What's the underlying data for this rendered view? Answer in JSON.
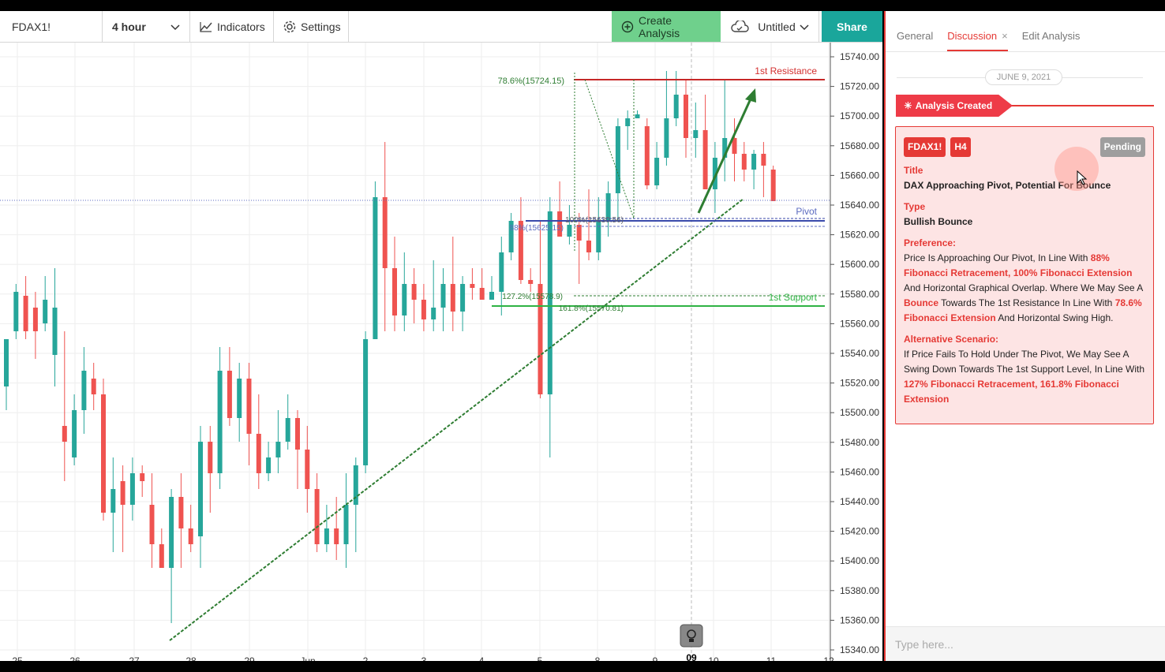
{
  "toolbar": {
    "symbol": "FDAX1!",
    "interval": "4 hour",
    "indicators": "Indicators",
    "settings": "Settings",
    "create_analysis": "Create Analysis",
    "untitled": "Untitled",
    "share": "Share"
  },
  "chart": {
    "price_axis": [
      "15740.00",
      "15720.00",
      "15700.00",
      "15680.00",
      "15660.00",
      "15640.00",
      "15620.00",
      "15600.00",
      "15580.00",
      "15560.00",
      "15540.00",
      "15520.00",
      "15500.00",
      "15480.00",
      "15460.00",
      "15440.00",
      "15420.00",
      "15400.00",
      "15380.00",
      "15360.00",
      "15340.00"
    ],
    "time_axis": [
      "25",
      "26",
      "27",
      "28",
      "29",
      "Jun",
      "2",
      "3",
      "4",
      "5",
      "8",
      "9",
      "10",
      "11",
      "12"
    ],
    "crosshair_label": "09",
    "annotations": {
      "resistance": "1st Resistance",
      "pivot": "Pivot",
      "support": "1st Support",
      "fib_786": "78.6%(15724.15)",
      "fib_100": "100%(15630.56)",
      "fib_88": "88%(15625.15)",
      "fib_1272": "127.2%(15578.9)",
      "fib_1618": "161.8%(15570.81)"
    },
    "colors": {
      "up": "#26a69a",
      "down": "#ef5350",
      "resistance": "#c62828",
      "pivot": "#3949ab",
      "support": "#2fb344",
      "trend": "#2e7d32"
    }
  },
  "sidebar": {
    "tabs": [
      "General",
      "Discussion",
      "Edit Analysis"
    ],
    "date": "JUNE 9, 2021",
    "created_label": "Analysis Created",
    "card": {
      "symbol": "FDAX1!",
      "timeframe": "H4",
      "status": "Pending",
      "title_label": "Title",
      "title": "DAX Approaching Pivot, Potential For Bounce",
      "type_label": "Type",
      "type": "Bullish Bounce",
      "pref_label": "Preference:",
      "pref_1": "Price Is Approaching Our Pivot, In Line With ",
      "pref_h1": "88% Fibonacci Retracement, 100% Fibonacci Extension",
      "pref_2": " And Horizontal Graphical Overlap. Where We May See A ",
      "pref_h2": "Bounce",
      "pref_3": " Towards The 1st Resistance In Line With ",
      "pref_h3": "78.6% Fibonacci Extension",
      "pref_4": " And Horizontal Swing High.",
      "alt_label": "Alternative Scenario:",
      "alt_1": "If Price Fails To Hold Under The Pivot, We May See A Swing Down Towards The 1st Support Level, In Line With ",
      "alt_h1": "127% Fibonacci Retracement, 161.8% Fibonacci Extension"
    },
    "input_placeholder": "Type here..."
  }
}
